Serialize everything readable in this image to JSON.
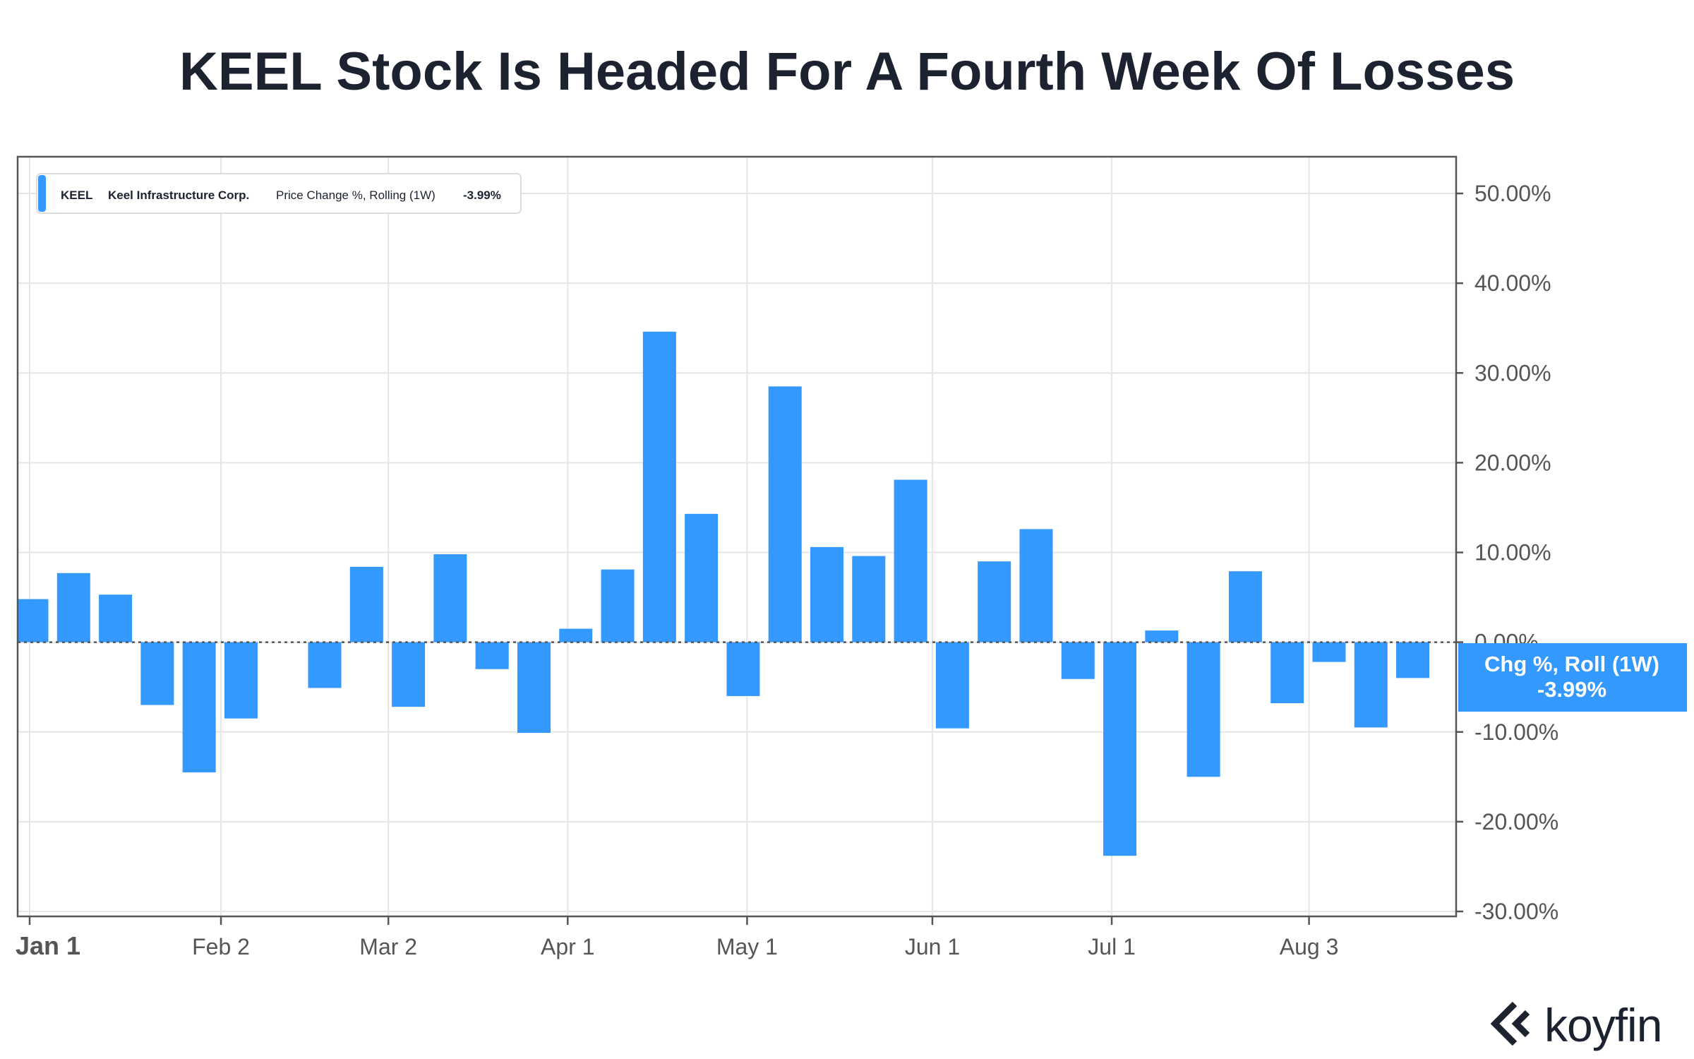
{
  "title": "KEEL Stock Is Headed For A Fourth Week Of Losses",
  "legend": {
    "ticker": "KEEL",
    "company": "Keel Infrastructure Corp.",
    "metric": "Price Change %, Rolling (1W)",
    "value": "-3.99%",
    "color": "#3399ff"
  },
  "current_label": {
    "line1": "Chg %, Roll (1W)",
    "line2": "-3.99%"
  },
  "brand": {
    "name": "koyfin",
    "icon": "koyfin-logo-icon"
  },
  "chart_data": {
    "type": "bar",
    "ylabel": "",
    "xlabel": "",
    "ylim": [
      -30,
      50
    ],
    "y_ticks": [
      "50.00%",
      "40.00%",
      "30.00%",
      "20.00%",
      "10.00%",
      "0.00%",
      "-10.00%",
      "-20.00%",
      "-30.00%"
    ],
    "y_tick_values": [
      50,
      40,
      30,
      20,
      10,
      0,
      -10,
      -20,
      -30
    ],
    "x_ticks": [
      "Jan 1",
      "Feb 2",
      "Mar 2",
      "Apr 1",
      "May 1",
      "Jun 1",
      "Jul 1",
      "Aug 3"
    ],
    "x_tick_dates": [
      "2021-01-01",
      "2021-02-02",
      "2021-03-02",
      "2021-04-01",
      "2021-05-01",
      "2021-06-01",
      "2021-07-01",
      "2021-08-03"
    ],
    "categories": [
      "2021-01-01",
      "2021-01-08",
      "2021-01-15",
      "2021-01-22",
      "2021-01-29",
      "2021-02-05",
      "2021-02-12",
      "2021-02-19",
      "2021-02-26",
      "2021-03-05",
      "2021-03-12",
      "2021-03-19",
      "2021-03-26",
      "2021-04-02",
      "2021-04-09",
      "2021-04-16",
      "2021-04-23",
      "2021-04-30",
      "2021-05-07",
      "2021-05-14",
      "2021-05-21",
      "2021-05-28",
      "2021-06-04",
      "2021-06-11",
      "2021-06-18",
      "2021-06-25",
      "2021-07-02",
      "2021-07-09",
      "2021-07-16",
      "2021-07-23",
      "2021-07-30",
      "2021-08-06",
      "2021-08-13",
      "2021-08-20"
    ],
    "values": [
      4.8,
      7.7,
      5.3,
      -7.0,
      -14.5,
      -8.5,
      null,
      -5.1,
      8.4,
      -7.2,
      9.8,
      -3.0,
      -10.1,
      1.5,
      8.1,
      34.6,
      14.3,
      -6.0,
      28.5,
      10.6,
      9.6,
      18.1,
      -9.6,
      9.0,
      12.6,
      -4.1,
      -23.8,
      1.3,
      -15.0,
      7.9,
      -6.8,
      -2.2,
      -9.5,
      -3.99
    ],
    "grid": true,
    "legend_position": "top-left",
    "zero_line": "dotted",
    "bar_color": "#3399ff"
  }
}
